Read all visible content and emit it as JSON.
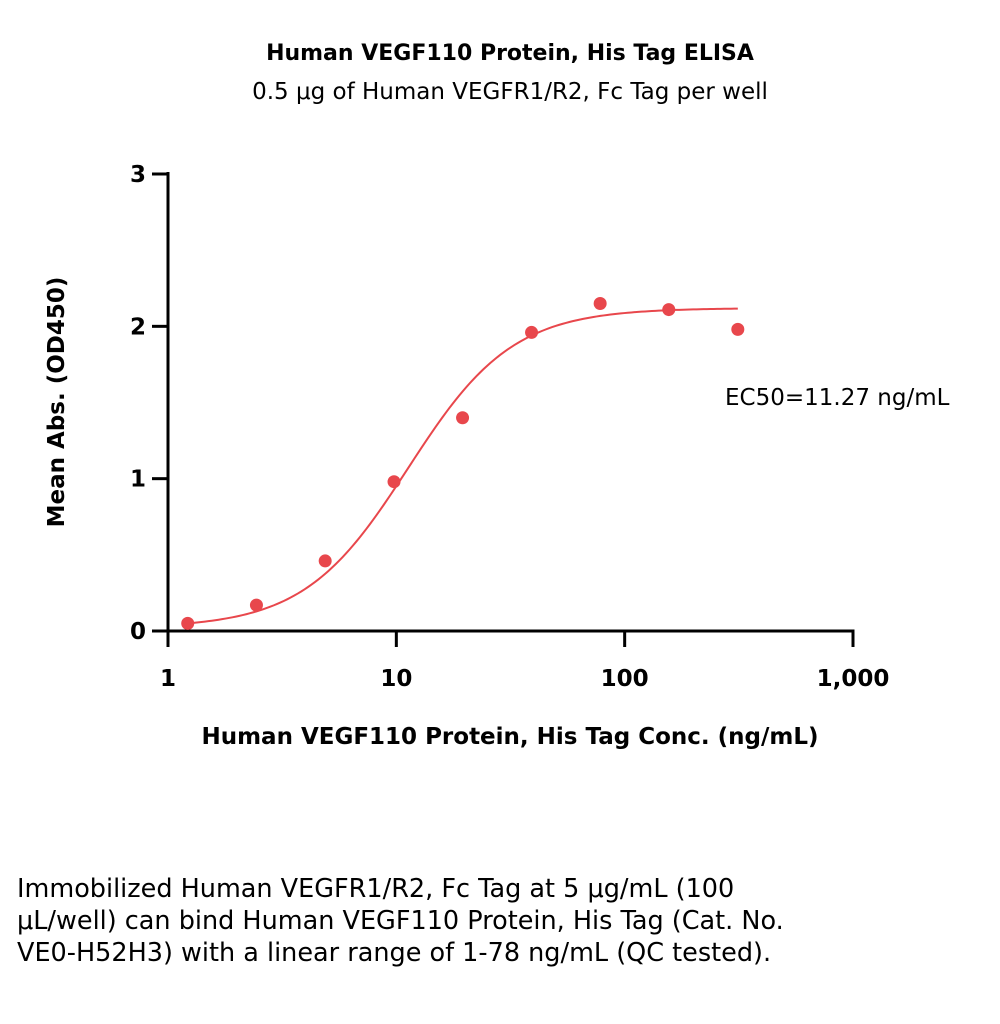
{
  "chart_data": {
    "type": "scatter",
    "title": "Human VEGF110 Protein, His Tag ELISA",
    "subtitle": "0.5 μg of Human VEGFR1/R2, Fc Tag per well",
    "xlabel": "Human VEGF110 Protein, His Tag Conc. (ng/mL)",
    "ylabel": "Mean Abs. (OD450)",
    "x_scale": "log",
    "xlim": [
      1,
      1000
    ],
    "ylim": [
      0,
      3
    ],
    "x_ticks": [
      1,
      10,
      100,
      1000
    ],
    "x_tick_labels": [
      "1",
      "10",
      "100",
      "1,000"
    ],
    "y_ticks": [
      0,
      1,
      2,
      3
    ],
    "y_tick_labels": [
      "0",
      "1",
      "2",
      "3"
    ],
    "grid": false,
    "color": "#e8474c",
    "series": [
      {
        "x": [
          1.22,
          2.44,
          4.88,
          9.77,
          19.5,
          39.1,
          78.1,
          156,
          313
        ],
        "y": [
          0.05,
          0.17,
          0.46,
          0.98,
          1.4,
          1.96,
          2.15,
          2.11,
          1.98
        ]
      }
    ],
    "fit_curve": {
      "bottom": 0.02,
      "top": 2.12,
      "ec50": 11.27,
      "hill": 1.9,
      "x_range": [
        1.22,
        313
      ]
    },
    "annotation": "EC50=11.27 ng/mL"
  },
  "caption": "Immobilized Human VEGFR1/R2, Fc Tag at 5 μg/mL (100 μL/well) can bind Human VEGF110 Protein, His Tag (Cat. No. VE0-H52H3) with a linear range of 1-78 ng/mL (QC tested)."
}
